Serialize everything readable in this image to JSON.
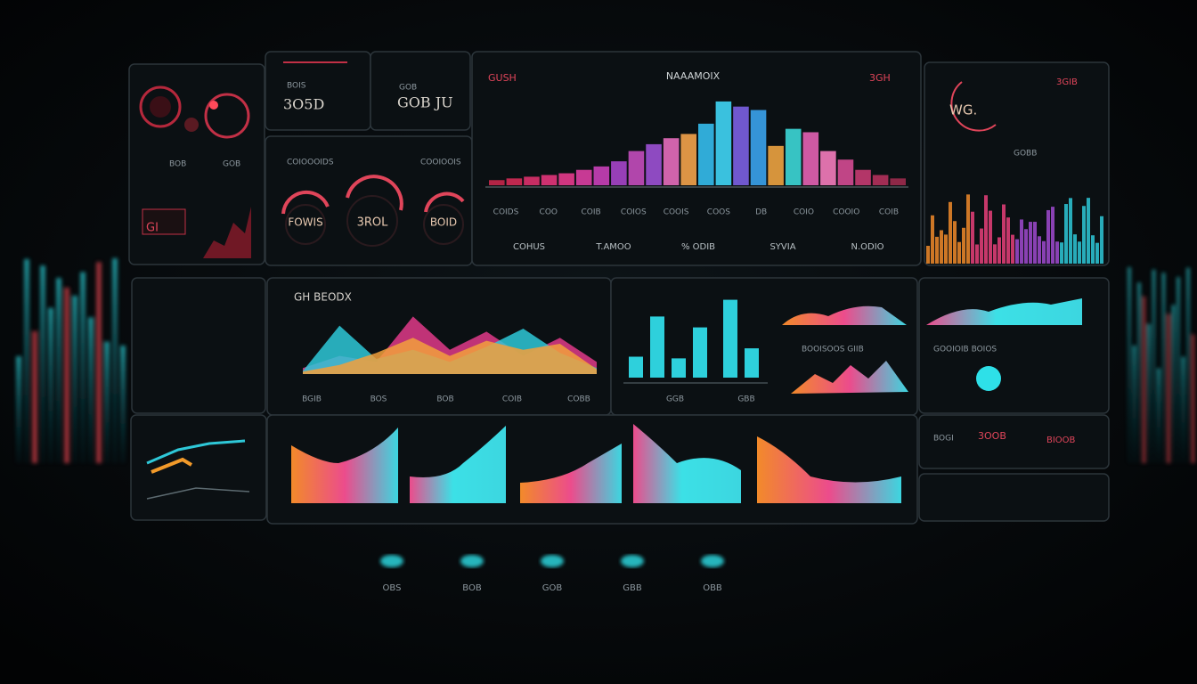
{
  "summary_a": {
    "value": "3O5D",
    "label": "BOIS"
  },
  "summary_b": {
    "value": "GOB JU",
    "label": "GOB"
  },
  "gauges": {
    "title_left": "COIOOOIDS",
    "title_right": "COOIOOIS",
    "items": [
      "FOWIS",
      "3ROL",
      "BOID"
    ]
  },
  "top_left": {
    "labels": [
      "BOB",
      "GOB"
    ],
    "tag": "GI"
  },
  "main_chart": {
    "title": "NAAAMOIX",
    "left_label": "GUSH",
    "right_label": "3GH",
    "values": [
      6,
      8,
      10,
      12,
      14,
      18,
      22,
      28,
      40,
      48,
      55,
      60,
      72,
      98,
      92,
      88,
      46,
      66,
      62,
      40,
      30,
      18,
      12,
      8
    ],
    "colors": [
      "#c2264a",
      "#d02a55",
      "#d8306a",
      "#e03478",
      "#e23a8a",
      "#d83ea0",
      "#c63fb5",
      "#a443c6",
      "#c04bb8",
      "#9a4fd0",
      "#e26ab8",
      "#f0a04a",
      "#34b8e8",
      "#3fd0f0",
      "#7a5ee0",
      "#3aa0e8",
      "#e8a040",
      "#3cd2d2",
      "#e060b0",
      "#f07ab8",
      "#d04a90",
      "#c23a70",
      "#b0305a",
      "#9a2a4c"
    ],
    "ylim": [
      0,
      100
    ],
    "axis_labels": [
      "COIDS",
      "COO",
      "COIB",
      "COIOS",
      "COOIS",
      "COOS",
      "DB",
      "COIO",
      "COOIO",
      "COIB"
    ],
    "footer_labels": [
      "COHUS",
      "T.AMOO",
      "% ODIB",
      "SYVIA",
      "N.ODIO"
    ]
  },
  "right_top": {
    "value": "WG.",
    "label": "3GIB",
    "caption": "GOBB"
  },
  "area_chart": {
    "title": "GH BEODX",
    "ylim": [
      0,
      100
    ],
    "series": [
      {
        "color": "#e03a8a",
        "values": [
          10,
          30,
          20,
          95,
          40,
          70,
          30,
          60,
          20
        ]
      },
      {
        "color": "#2ec8d8",
        "values": [
          5,
          80,
          25,
          40,
          20,
          45,
          75,
          35,
          10
        ]
      },
      {
        "color": "#f2a03c",
        "values": [
          4,
          15,
          35,
          60,
          30,
          55,
          40,
          50,
          8
        ]
      }
    ],
    "x_labels": [
      "BGIB",
      "BOS",
      "BOB",
      "COIB",
      "COBB"
    ]
  },
  "bar_chart": {
    "ylim": [
      0,
      100
    ],
    "values": [
      25,
      73,
      23,
      60,
      93,
      35
    ],
    "color": "#2ed0dc",
    "labels": [
      "GGB",
      "GBB"
    ],
    "caption": "BOOISOOS GIIB"
  },
  "right_mid": {
    "caption": "GOOIOIB BOIOS"
  },
  "right_bottom": {
    "rows": [
      "BOGI",
      "3OOB",
      "BIOOB"
    ]
  },
  "dock": {
    "labels": [
      "OBS",
      "BOB",
      "GOB",
      "GBB",
      "OBB"
    ]
  }
}
